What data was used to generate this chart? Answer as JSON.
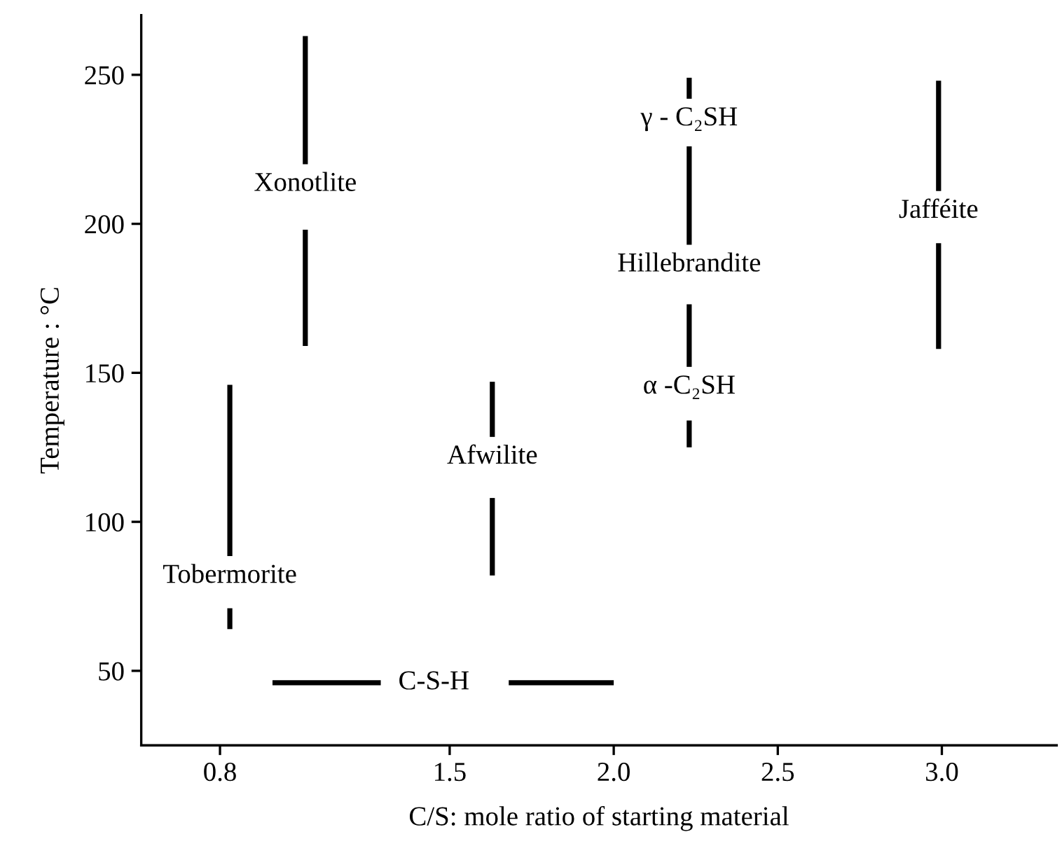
{
  "chart_data": {
    "type": "line",
    "xlabel": "C/S: mole ratio of starting material",
    "ylabel": "Temperature : °C",
    "xlim": [
      0.56,
      3.35
    ],
    "xticks": [
      0.8,
      1.5,
      {
        "value": 2,
        "label": "2.0"
      },
      2.5,
      {
        "value": 3,
        "label": "3.0"
      }
    ],
    "ylim": [
      25,
      270
    ],
    "yticks": [
      50,
      100,
      150,
      200,
      250
    ],
    "grid": false,
    "legend": false,
    "marker": "none",
    "line_style": "solid",
    "series": [
      {
        "name": "Tobermorite",
        "color": "#000000",
        "x": [
          0.83,
          0.83
        ],
        "values": [
          146,
          88.5
        ]
      },
      {
        "color": "#000000",
        "x": [
          0.83,
          0.83
        ],
        "values": [
          71,
          64
        ]
      },
      {
        "name": "Xonotlite",
        "color": "#000000",
        "x": [
          1.06,
          1.06
        ],
        "values": [
          263,
          220
        ]
      },
      {
        "color": "#000000",
        "x": [
          1.06,
          1.06
        ],
        "values": [
          198,
          159
        ]
      },
      {
        "name": "Afwilite",
        "color": "#000000",
        "x": [
          1.63,
          1.63
        ],
        "values": [
          147,
          128.5
        ]
      },
      {
        "color": "#000000",
        "x": [
          1.63,
          1.63
        ],
        "values": [
          108,
          82
        ]
      },
      {
        "name": "γ - C₂SH",
        "color": "#000000",
        "x": [
          2.23,
          2.23
        ],
        "values": [
          249,
          242
        ]
      },
      {
        "name": "Hillebrandite",
        "color": "#000000",
        "x": [
          2.23,
          2.23
        ],
        "values": [
          226,
          193
        ]
      },
      {
        "name": "α -C₂SH",
        "color": "#000000",
        "x": [
          2.23,
          2.23
        ],
        "values": [
          173,
          152
        ]
      },
      {
        "color": "#000000",
        "x": [
          2.23,
          2.23
        ],
        "values": [
          134,
          125
        ]
      },
      {
        "name": "Jafféite",
        "color": "#000000",
        "x": [
          2.99,
          2.99
        ],
        "values": [
          248,
          211
        ]
      },
      {
        "color": "#000000",
        "x": [
          2.99,
          2.99
        ],
        "values": [
          193.5,
          158
        ]
      },
      {
        "name": "C-S-H",
        "color": "#000000",
        "x": [
          0.96,
          1.29
        ],
        "values": [
          46,
          46
        ]
      },
      {
        "color": "#000000",
        "x": [
          1.68,
          2.0
        ],
        "values": [
          46,
          46
        ]
      }
    ]
  }
}
